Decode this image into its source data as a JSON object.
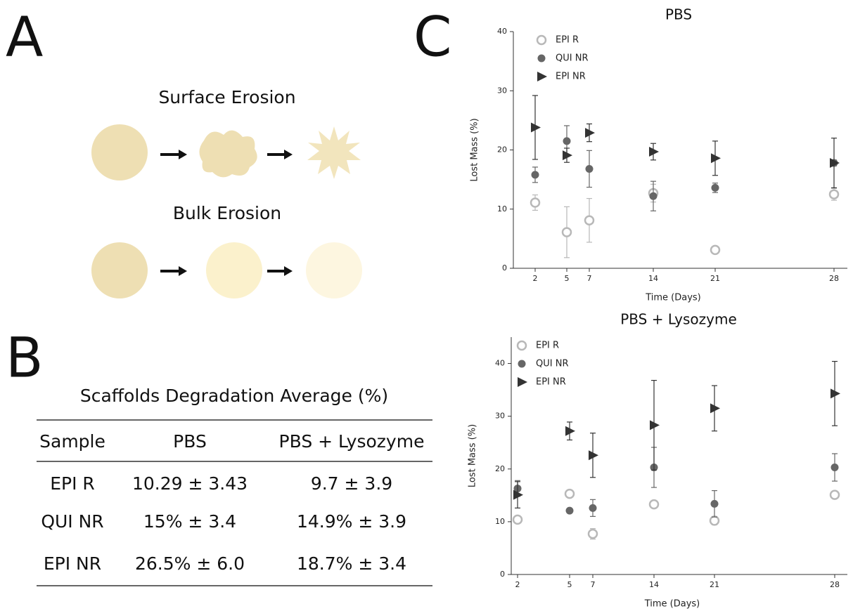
{
  "panels": [
    "A",
    "B",
    "C"
  ],
  "diagram": {
    "surface_title": "Surface Erosion",
    "bulk_title": "Bulk Erosion"
  },
  "table": {
    "title": "Scaffolds Degradation Average (%)",
    "header": [
      "Sample",
      "PBS",
      "PBS + Lysozyme"
    ],
    "rows": [
      [
        "EPI R",
        "10.29  ± 3.43",
        "9.7 ± 3.9"
      ],
      [
        "QUI NR",
        "15% ± 3.4",
        "14.9% ± 3.9"
      ],
      [
        "EPI NR",
        "26.5% ± 6.0",
        "18.7% ± 3.4"
      ]
    ]
  },
  "chart_data": [
    {
      "type": "scatter",
      "title": "PBS",
      "x_label": "Time (Days)",
      "y_label": "Lost Mass (%)",
      "categories": [
        "2",
        "5",
        "7",
        "14",
        "21",
        "28"
      ],
      "ylim": [
        0,
        40
      ],
      "yticks": [
        0,
        10,
        20,
        30,
        40
      ],
      "legend": "top-left",
      "series": [
        {
          "name": "EPI R",
          "color": "#b8b8b8",
          "marker": "open-circle",
          "values": [
            11.1,
            6.1,
            8.1,
            12.7,
            3.1,
            12.5
          ],
          "errors": [
            1.3,
            4.3,
            3.7,
            1.5,
            0.5,
            1.0
          ]
        },
        {
          "name": "QUI NR",
          "color": "#666666",
          "marker": "circle",
          "values": [
            15.8,
            21.5,
            16.8,
            12.2,
            13.6,
            17.8
          ],
          "errors": [
            1.3,
            2.6,
            3.1,
            2.5,
            0.8,
            0.5
          ]
        },
        {
          "name": "EPI NR",
          "color": "#333333",
          "marker": "triangle",
          "values": [
            23.8,
            19.1,
            22.9,
            19.7,
            18.6,
            17.8
          ],
          "errors": [
            5.4,
            1.2,
            1.5,
            1.4,
            2.9,
            4.2
          ]
        }
      ]
    },
    {
      "type": "scatter",
      "title": "PBS + Lysozyme",
      "x_label": "Time (Days)",
      "y_label": "Lost Mass (%)",
      "categories": [
        "2",
        "5",
        "7",
        "14",
        "21",
        "28"
      ],
      "ylim": [
        0,
        45
      ],
      "yticks": [
        0,
        10,
        20,
        30,
        40
      ],
      "legend": "top-left",
      "series": [
        {
          "name": "EPI R",
          "color": "#b8b8b8",
          "marker": "open-circle",
          "values": [
            10.4,
            15.3,
            7.7,
            13.3,
            10.2,
            15.1
          ],
          "errors": [
            0.6,
            0.6,
            1.0,
            0.5,
            0.8,
            0.5
          ]
        },
        {
          "name": "QUI NR",
          "color": "#666666",
          "marker": "circle",
          "values": [
            16.3,
            12.1,
            12.6,
            20.3,
            13.4,
            20.3
          ],
          "errors": [
            1.5,
            0.4,
            1.6,
            3.8,
            2.5,
            2.6
          ]
        },
        {
          "name": "EPI NR",
          "color": "#333333",
          "marker": "triangle",
          "values": [
            15.1,
            27.2,
            22.6,
            28.3,
            31.5,
            34.3
          ],
          "errors": [
            2.5,
            1.7,
            4.2,
            8.5,
            4.3,
            6.1
          ]
        }
      ]
    }
  ]
}
